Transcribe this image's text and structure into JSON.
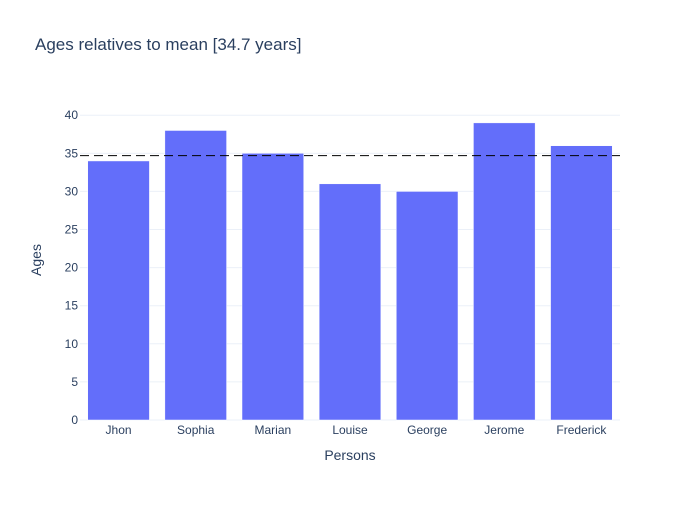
{
  "chart_data": {
    "type": "bar",
    "title": "Ages relatives to mean [34.7 years]",
    "xlabel": "Persons",
    "ylabel": "Ages",
    "categories": [
      "Jhon",
      "Sophia",
      "Marian",
      "Louise",
      "George",
      "Jerome",
      "Frederick"
    ],
    "values": [
      34,
      38,
      35,
      31,
      30,
      39,
      36
    ],
    "ylim": [
      0,
      42
    ],
    "yticks": [
      0,
      5,
      10,
      15,
      20,
      25,
      30,
      35,
      40
    ],
    "mean": 34.7,
    "grid": true,
    "legend": "none",
    "colors": {
      "bar": "#636efa",
      "mean_line": "#000000",
      "grid": "#ebf0f8",
      "text": "#2a3f5f"
    }
  }
}
